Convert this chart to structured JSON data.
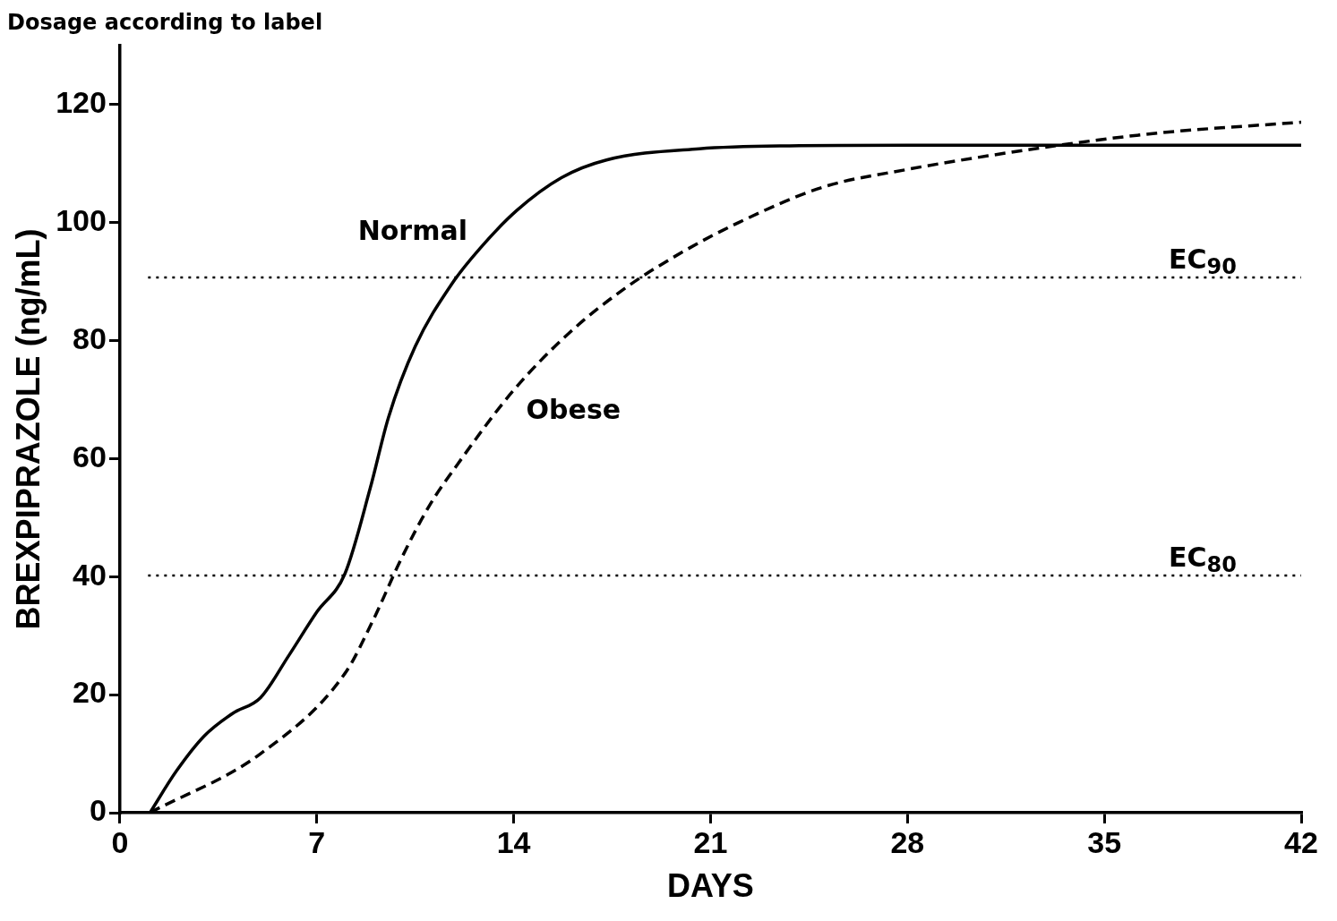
{
  "chart_data": {
    "type": "line",
    "title": "Dosage according to label",
    "xlabel": "DAYS",
    "ylabel": "BREXPIPRAZOLE (ng/mL)",
    "xlim": [
      0,
      42
    ],
    "ylim": [
      0,
      130
    ],
    "xticks": [
      0,
      7,
      14,
      21,
      28,
      35,
      42
    ],
    "yticks": [
      0,
      20,
      40,
      60,
      80,
      100,
      120
    ],
    "grid": false,
    "legend": false,
    "marker": "none",
    "series": [
      {
        "name": "Normal",
        "color": "#000000",
        "line_style": "solid",
        "x": [
          1.07,
          2,
          3,
          4,
          5,
          6,
          7,
          8,
          8.9,
          9.55,
          10.5,
          11.8,
          12.8,
          14.1,
          15.7,
          17.3,
          20.6,
          23.8,
          28,
          35,
          42
        ],
        "values": [
          0,
          7,
          13,
          16.8,
          19.5,
          26.6,
          34,
          40.5,
          55,
          67,
          79,
          89.6,
          95.6,
          102,
          107.6,
          110.6,
          112.5,
          113,
          113.1,
          113.1,
          113.1
        ]
      },
      {
        "name": "Obese",
        "color": "#000000",
        "line_style": "dashed",
        "x": [
          1.07,
          5,
          8,
          9,
          10,
          11,
          12,
          14,
          16,
          18,
          20,
          22,
          25,
          28,
          31,
          34,
          37,
          42
        ],
        "values": [
          0,
          10,
          23.6,
          32.6,
          43,
          52,
          59,
          71.6,
          81.4,
          89,
          95,
          100,
          106,
          109,
          111.4,
          113.5,
          115.2,
          117
        ]
      }
    ],
    "ref_lines": [
      {
        "axis": "y",
        "value": 90.7,
        "label": "EC$_{90}$",
        "color": "#000000",
        "line_style": "dotted"
      },
      {
        "axis": "y",
        "value": 40.2,
        "label": "EC$_{80}$",
        "color": "#000000",
        "line_style": "dotted"
      }
    ]
  }
}
